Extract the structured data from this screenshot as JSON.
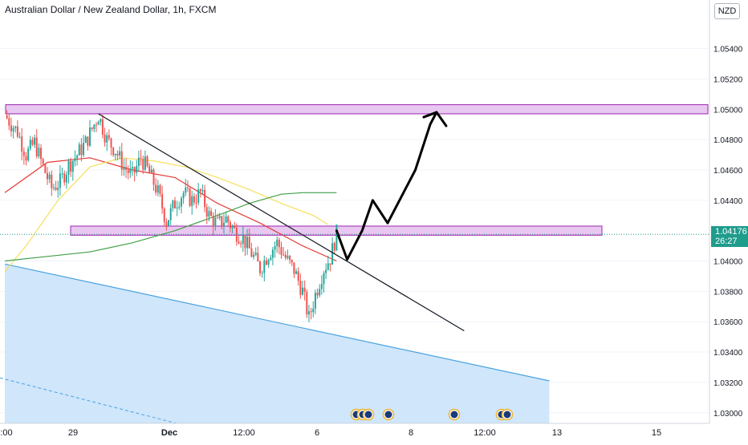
{
  "header": {
    "title": "Australian Dollar / New Zealand Dollar, 1h, FXCM"
  },
  "currency_badge": "NZD",
  "current_price": {
    "value": "1.04176",
    "countdown": "26:27"
  },
  "colors": {
    "up": "#26a69a",
    "down": "#ef5350",
    "ma_red": "#e53935",
    "ma_yellow": "#f6e05e",
    "ma_green": "#43a047",
    "zone_fill": "#e8c8f0",
    "zone_stroke": "#9c27b0",
    "channel_fill": "#cfe6fb",
    "channel_line": "#4aa3df",
    "price_line": "#1e9c8c"
  },
  "chart_data": {
    "type": "candlestick",
    "title": "Australian Dollar / New Zealand Dollar, 1h, FXCM",
    "y_axis": {
      "ticks": [
        "1.05400",
        "1.05200",
        "1.05000",
        "1.04800",
        "1.04600",
        "1.04400",
        "1.04000",
        "1.03800",
        "1.03600",
        "1.03400",
        "1.03200",
        "1.03000"
      ],
      "range": [
        1.0293,
        1.0572
      ]
    },
    "x_axis": {
      "ticks": [
        ":00",
        "29",
        "Dec",
        "12:00",
        "6",
        "8",
        "12:00",
        "13",
        "15"
      ]
    },
    "price_path": [
      {
        "x": 0,
        "y": 1.0496
      },
      {
        "x": 6,
        "y": 1.0485
      },
      {
        "x": 10,
        "y": 1.047
      },
      {
        "x": 14,
        "y": 1.0478
      },
      {
        "x": 18,
        "y": 1.0462
      },
      {
        "x": 22,
        "y": 1.0448
      },
      {
        "x": 26,
        "y": 1.0452
      },
      {
        "x": 30,
        "y": 1.0463
      },
      {
        "x": 34,
        "y": 1.047
      },
      {
        "x": 38,
        "y": 1.0478
      },
      {
        "x": 42,
        "y": 1.049
      },
      {
        "x": 44,
        "y": 1.0496
      },
      {
        "x": 48,
        "y": 1.048
      },
      {
        "x": 52,
        "y": 1.0473
      },
      {
        "x": 56,
        "y": 1.0462
      },
      {
        "x": 60,
        "y": 1.0456
      },
      {
        "x": 64,
        "y": 1.0468
      },
      {
        "x": 68,
        "y": 1.0458
      },
      {
        "x": 72,
        "y": 1.0445
      },
      {
        "x": 76,
        "y": 1.0426
      },
      {
        "x": 80,
        "y": 1.0438
      },
      {
        "x": 84,
        "y": 1.0445
      },
      {
        "x": 88,
        "y": 1.044
      },
      {
        "x": 92,
        "y": 1.0445
      },
      {
        "x": 96,
        "y": 1.043
      },
      {
        "x": 100,
        "y": 1.0424
      },
      {
        "x": 104,
        "y": 1.0428
      },
      {
        "x": 108,
        "y": 1.042
      },
      {
        "x": 112,
        "y": 1.0415
      },
      {
        "x": 116,
        "y": 1.0405
      },
      {
        "x": 120,
        "y": 1.0395
      },
      {
        "x": 124,
        "y": 1.0405
      },
      {
        "x": 128,
        "y": 1.0412
      },
      {
        "x": 132,
        "y": 1.0402
      },
      {
        "x": 136,
        "y": 1.0394
      },
      {
        "x": 140,
        "y": 1.038
      },
      {
        "x": 143,
        "y": 1.0362
      },
      {
        "x": 146,
        "y": 1.0378
      },
      {
        "x": 150,
        "y": 1.0395
      },
      {
        "x": 153,
        "y": 1.0402
      },
      {
        "x": 156,
        "y": 1.0418
      }
    ],
    "moving_averages": [
      {
        "name": "red",
        "points": [
          [
            0,
            1.0445
          ],
          [
            20,
            1.0465
          ],
          [
            40,
            1.0468
          ],
          [
            60,
            1.046
          ],
          [
            80,
            1.0455
          ],
          [
            100,
            1.0438
          ],
          [
            120,
            1.0425
          ],
          [
            140,
            1.041
          ],
          [
            156,
            1.04
          ]
        ]
      },
      {
        "name": "yellow",
        "points": [
          [
            0,
            1.0393
          ],
          [
            10,
            1.041
          ],
          [
            25,
            1.044
          ],
          [
            40,
            1.0462
          ],
          [
            55,
            1.0468
          ],
          [
            70,
            1.0466
          ],
          [
            85,
            1.0462
          ],
          [
            100,
            1.0455
          ],
          [
            115,
            1.0447
          ],
          [
            130,
            1.0438
          ],
          [
            145,
            1.043
          ],
          [
            152,
            1.0424
          ]
        ]
      },
      {
        "name": "green",
        "points": [
          [
            0,
            1.04
          ],
          [
            20,
            1.0403
          ],
          [
            40,
            1.0406
          ],
          [
            60,
            1.0412
          ],
          [
            80,
            1.042
          ],
          [
            100,
            1.043
          ],
          [
            115,
            1.0438
          ],
          [
            130,
            1.0444
          ],
          [
            140,
            1.0445
          ],
          [
            156,
            1.0445
          ]
        ]
      }
    ],
    "zones": [
      {
        "from": 1.0497,
        "to": 1.0503
      },
      {
        "from": 1.0417,
        "to": 1.0423
      }
    ],
    "trendline": [
      [
        44,
        1.0497
      ],
      [
        216,
        1.0354
      ]
    ],
    "channel_line": [
      [
        0,
        1.0398
      ],
      [
        256,
        1.0321
      ]
    ],
    "projection": [
      [
        156,
        1.042
      ],
      [
        161,
        1.0401
      ],
      [
        168,
        1.042
      ],
      [
        173,
        1.044
      ],
      [
        180,
        1.0425
      ],
      [
        193,
        1.046
      ],
      [
        200,
        1.049
      ],
      [
        203,
        1.0498
      ],
      [
        207,
        1.049
      ]
    ]
  }
}
